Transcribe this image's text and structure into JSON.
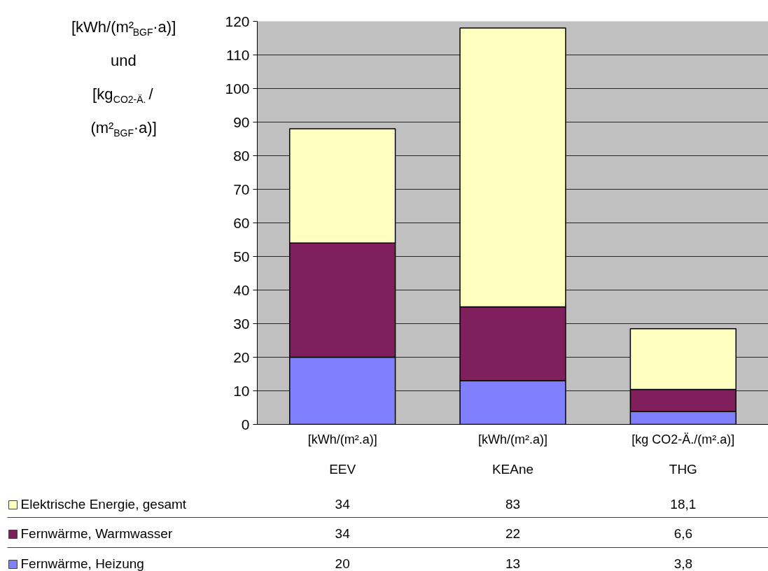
{
  "chart_data": {
    "type": "bar",
    "stacked": true,
    "ylabel": "[kWh/(m²$_{BGF}$·a)]\n\nund\n\n[kg$_{CO2-Ä.}$ /\n\n(m²$_{BGF}$·a)]",
    "categories": [
      "[kWh/(m².a)]\nEEV",
      "[kWh/(m².a)]\nKEAne",
      "[kg CO2-Ä./(m².a)]\nTHG"
    ],
    "series": [
      {
        "name": "Fernwärme, Heizung",
        "color": "#8080ff",
        "values": [
          20,
          13,
          3.8
        ],
        "value_labels": [
          "20",
          "13",
          "3,8"
        ]
      },
      {
        "name": "Fernwärme, Warmwasser",
        "color": "#7f1f5c",
        "values": [
          34,
          22,
          6.6
        ],
        "value_labels": [
          "34",
          "22",
          "6,6"
        ]
      },
      {
        "name": "Elektrische Energie, gesamt",
        "color": "#ffffc0",
        "values": [
          34,
          83,
          18.1
        ],
        "value_labels": [
          "34",
          "83",
          "18,1"
        ]
      }
    ],
    "ylim": [
      0,
      120
    ],
    "yticks": [
      0,
      10,
      20,
      30,
      40,
      50,
      60,
      70,
      80,
      90,
      100,
      110,
      120
    ],
    "grid": "y",
    "legend": "bottom"
  }
}
